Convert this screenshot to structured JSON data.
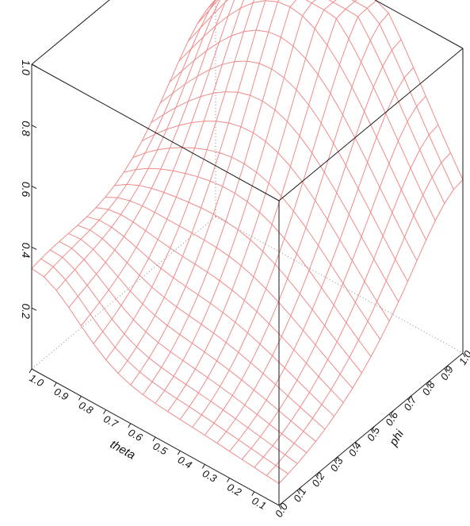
{
  "chart_data": {
    "type": "surface",
    "colors": {
      "mesh": "#f08a8a",
      "box": "#1a1a1a"
    },
    "x_axis": {
      "label": "theta",
      "ticks": [
        "1.0",
        "0.9",
        "0.8",
        "0.7",
        "0.6",
        "0.5",
        "0.4",
        "0.3",
        "0.2",
        "0.1"
      ]
    },
    "y_axis": {
      "label": "phi",
      "ticks": [
        "0.0",
        "0.1",
        "0.2",
        "0.3",
        "0.4",
        "0.5",
        "0.6",
        "0.7",
        "0.8",
        "0.9",
        "1.0"
      ]
    },
    "z_axis": {
      "label": "",
      "ticks": [
        "1.0",
        "0.8",
        "0.6",
        "0.4",
        "0.2"
      ]
    },
    "grid_size": 21,
    "surface_function": "smooth hill: low (~0.05) near theta=0.1-0.5 at phi=0, rising to ~1.0 near phi=0.9-1.0 at mid theta; z range 0 to 1",
    "zlim": [
      0,
      1
    ],
    "xlim": [
      0,
      1
    ],
    "ylim": [
      0,
      1
    ]
  }
}
